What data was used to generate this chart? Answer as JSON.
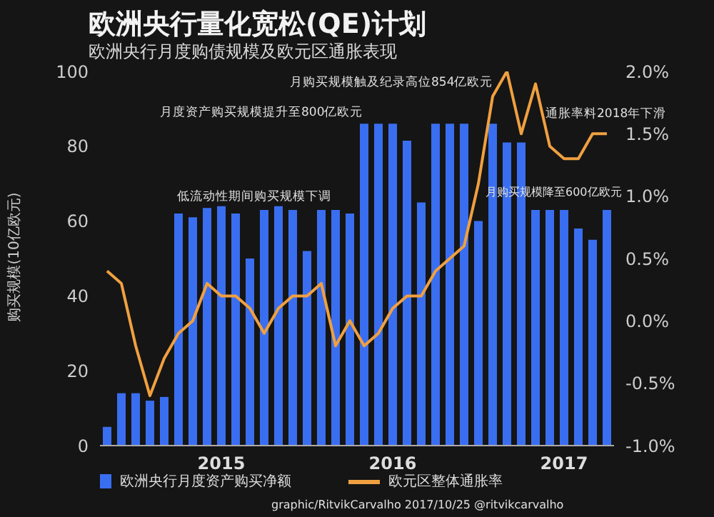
{
  "chart_data": {
    "type": "bar",
    "title": "欧洲央行量化宽松(QE)计划",
    "subtitle": "欧洲央行月度购债规模及欧元区通胀表现",
    "ylabel": "购买规模(10亿欧元)",
    "categories": [
      null,
      null,
      null,
      null,
      null,
      null,
      null,
      null,
      "2015",
      null,
      null,
      null,
      null,
      null,
      null,
      null,
      null,
      null,
      null,
      null,
      "2016",
      null,
      null,
      null,
      null,
      null,
      null,
      null,
      null,
      null,
      null,
      null,
      "2017",
      null,
      null,
      null
    ],
    "series": [
      {
        "name": "欧洲央行月度资产购买净额",
        "color": "#3a6ef0",
        "values": [
          5,
          14,
          14,
          12,
          13,
          62,
          61,
          63.5,
          64,
          62,
          50,
          63,
          64,
          63,
          52,
          63,
          63,
          62,
          86,
          86,
          86,
          81.5,
          65,
          86,
          86,
          86,
          60,
          86,
          81,
          81,
          63,
          63,
          63,
          58,
          55,
          63
        ]
      },
      {
        "name": "欧元区整体通胀率",
        "type": "line",
        "axis": "y2",
        "color": "#f0a040",
        "values": [
          0.4,
          0.3,
          -0.2,
          -0.6,
          -0.3,
          -0.1,
          0.0,
          0.3,
          0.2,
          0.2,
          0.1,
          -0.1,
          0.1,
          0.2,
          0.2,
          0.3,
          -0.2,
          0.0,
          -0.2,
          -0.1,
          0.1,
          0.2,
          0.2,
          0.4,
          0.5,
          0.6,
          1.1,
          1.8,
          2.0,
          1.5,
          1.9,
          1.4,
          1.3,
          1.3,
          1.5,
          1.5
        ]
      }
    ],
    "ylim": [
      0,
      100
    ],
    "yticks": [
      0,
      20,
      40,
      60,
      80,
      100
    ],
    "y2lim": [
      -1,
      2
    ],
    "y2ticks": [
      {
        "value": -1,
        "label": "-1.0%"
      },
      {
        "value": -0.5,
        "label": "-0.5%"
      },
      {
        "value": 0,
        "label": "0.0%"
      },
      {
        "value": 0.5,
        "label": "0.5%"
      },
      {
        "value": 1,
        "label": "1.0%"
      },
      {
        "value": 1.5,
        "label": "1.5%"
      },
      {
        "value": 2,
        "label": "2.0%"
      }
    ],
    "legend": "bottom",
    "annotations": [
      "月度资产购买规模提升至800亿欧元",
      "月购买规模触及纪录高位854亿欧元",
      "低流动性期间购买规模下调",
      "月购买规模降至600亿欧元",
      "通胀率料2018年下滑",
      "graphic/RitvikCarvalho 2017/10/25 @ritvikcarvalho"
    ]
  }
}
